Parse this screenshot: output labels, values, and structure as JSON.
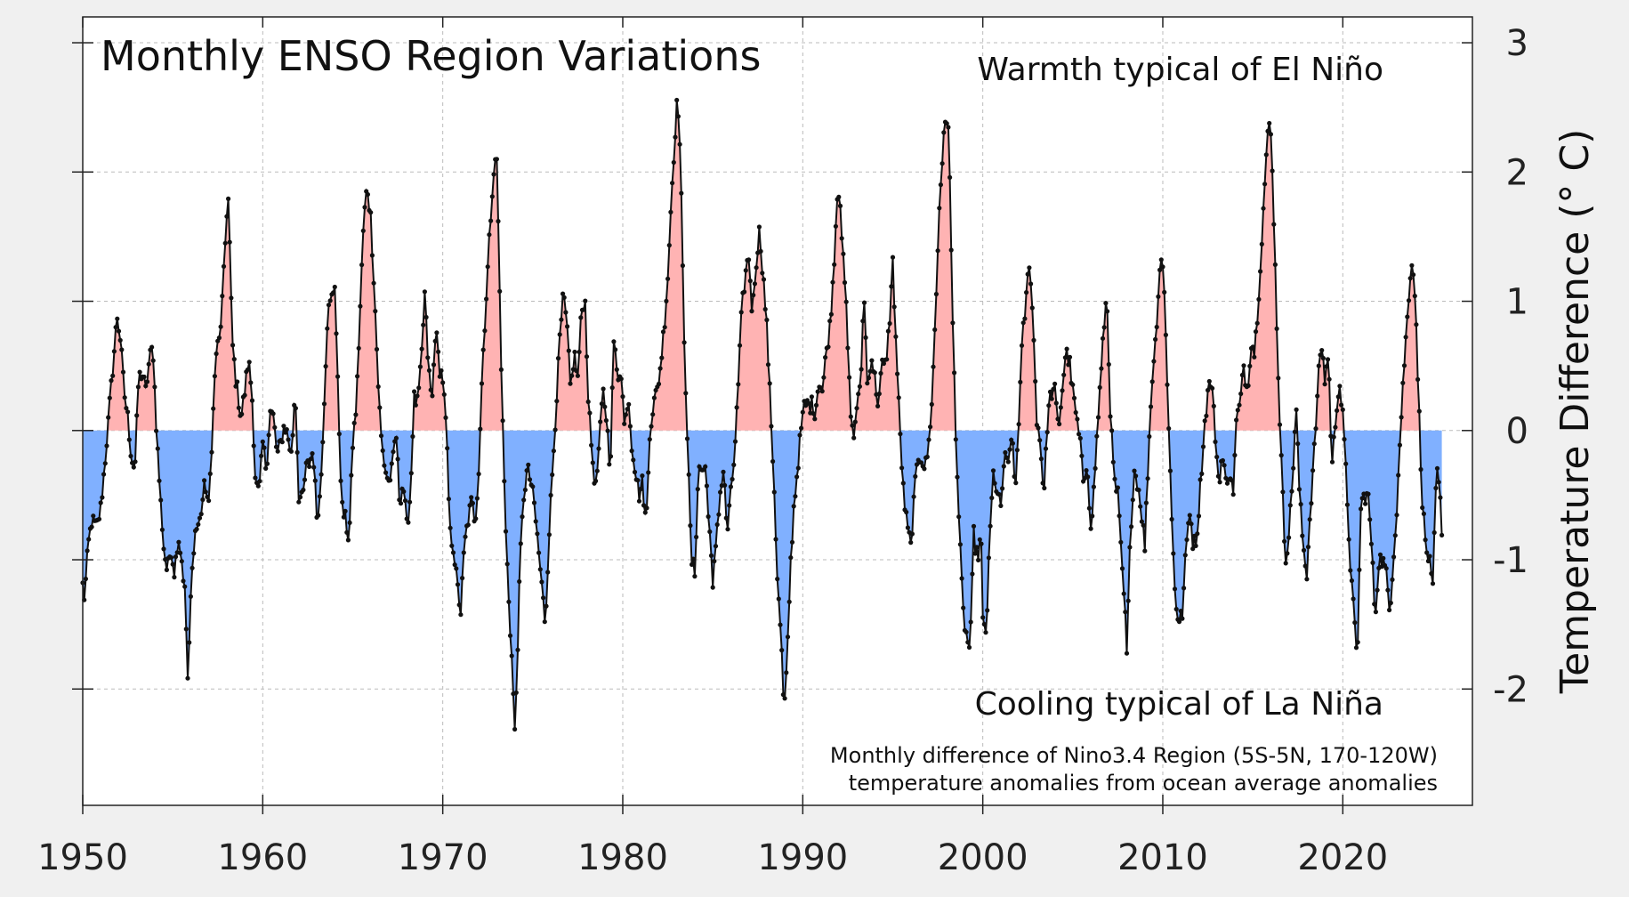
{
  "chart_data": {
    "type": "area",
    "title": "Monthly ENSO Region Variations",
    "ylabel": "Temperature Difference (° C)",
    "xlabel": "",
    "xlim": [
      1950,
      2027.2
    ],
    "ylim": [
      -2.9,
      3.2
    ],
    "x_ticks": [
      1950,
      1960,
      1970,
      1980,
      1990,
      2000,
      2010,
      2020
    ],
    "x_tick_labels": [
      "1950",
      "1960",
      "1970",
      "1980",
      "1990",
      "2000",
      "2010",
      "2020"
    ],
    "y_ticks": [
      -2,
      -1,
      0,
      1,
      2,
      3
    ],
    "y_tick_labels": [
      "-2",
      "-1",
      "0",
      "1",
      "2",
      "3"
    ],
    "grid": true,
    "annotations": {
      "warm": "Warmth typical of El Niño",
      "cool": "Cooling typical of La Niña",
      "note_line1": "Monthly difference of Nino3.4 Region (5S-5N, 170-120W)",
      "note_line2": "temperature anomalies from ocean average anomalies"
    },
    "colors": {
      "positive_fill": "#ffb3b3",
      "negative_fill": "#80b0ff",
      "line": "#111111",
      "warm_text": "#dd2222",
      "cool_text": "#3333cc",
      "background": "#f0f0f0",
      "plot_background": "#ffffff"
    },
    "series_keypoints": [
      [
        1950.0,
        -1.2
      ],
      [
        1950.1,
        -1.3
      ],
      [
        1950.3,
        -0.9
      ],
      [
        1950.5,
        -0.7
      ],
      [
        1950.8,
        -0.75
      ],
      [
        1951.0,
        -0.6
      ],
      [
        1951.2,
        -0.3
      ],
      [
        1951.5,
        0.2
      ],
      [
        1951.8,
        0.7
      ],
      [
        1951.9,
        0.9
      ],
      [
        1952.1,
        0.7
      ],
      [
        1952.3,
        0.3
      ],
      [
        1952.5,
        0.1
      ],
      [
        1952.7,
        -0.2
      ],
      [
        1952.9,
        -0.3
      ],
      [
        1953.1,
        0.4
      ],
      [
        1953.3,
        0.45
      ],
      [
        1953.5,
        0.3
      ],
      [
        1953.7,
        0.55
      ],
      [
        1953.9,
        0.65
      ],
      [
        1954.1,
        0.0
      ],
      [
        1954.3,
        -0.5
      ],
      [
        1954.5,
        -0.9
      ],
      [
        1954.7,
        -1.1
      ],
      [
        1954.9,
        -0.9
      ],
      [
        1955.1,
        -1.1
      ],
      [
        1955.3,
        -0.8
      ],
      [
        1955.5,
        -1.0
      ],
      [
        1955.7,
        -1.3
      ],
      [
        1955.85,
        -2.0
      ],
      [
        1956.0,
        -1.3
      ],
      [
        1956.2,
        -0.8
      ],
      [
        1956.5,
        -0.7
      ],
      [
        1956.8,
        -0.4
      ],
      [
        1957.0,
        -0.6
      ],
      [
        1957.2,
        0.0
      ],
      [
        1957.4,
        0.6
      ],
      [
        1957.6,
        0.7
      ],
      [
        1957.8,
        1.1
      ],
      [
        1958.0,
        1.7
      ],
      [
        1958.1,
        1.8
      ],
      [
        1958.3,
        0.7
      ],
      [
        1958.5,
        0.4
      ],
      [
        1958.8,
        0.1
      ],
      [
        1959.0,
        0.3
      ],
      [
        1959.2,
        0.55
      ],
      [
        1959.4,
        0.3
      ],
      [
        1959.6,
        -0.4
      ],
      [
        1959.8,
        -0.5
      ],
      [
        1960.0,
        -0.1
      ],
      [
        1960.2,
        -0.3
      ],
      [
        1960.4,
        0.15
      ],
      [
        1960.6,
        0.1
      ],
      [
        1960.8,
        -0.2
      ],
      [
        1961.0,
        -0.1
      ],
      [
        1961.2,
        0.05
      ],
      [
        1961.4,
        -0.05
      ],
      [
        1961.6,
        -0.2
      ],
      [
        1961.8,
        0.35
      ],
      [
        1962.0,
        -0.5
      ],
      [
        1962.2,
        -0.55
      ],
      [
        1962.4,
        -0.3
      ],
      [
        1962.6,
        -0.25
      ],
      [
        1962.8,
        -0.15
      ],
      [
        1963.0,
        -0.65
      ],
      [
        1963.2,
        -0.5
      ],
      [
        1963.4,
        0.2
      ],
      [
        1963.6,
        0.9
      ],
      [
        1963.8,
        1.0
      ],
      [
        1964.0,
        1.15
      ],
      [
        1964.2,
        0.2
      ],
      [
        1964.4,
        -0.6
      ],
      [
        1964.6,
        -0.7
      ],
      [
        1964.8,
        -0.85
      ],
      [
        1965.0,
        -0.1
      ],
      [
        1965.2,
        0.2
      ],
      [
        1965.4,
        0.9
      ],
      [
        1965.6,
        1.6
      ],
      [
        1965.8,
        1.9
      ],
      [
        1966.0,
        1.65
      ],
      [
        1966.2,
        1.1
      ],
      [
        1966.4,
        0.4
      ],
      [
        1966.6,
        -0.1
      ],
      [
        1966.8,
        -0.3
      ],
      [
        1967.0,
        -0.4
      ],
      [
        1967.2,
        -0.3
      ],
      [
        1967.4,
        0.0
      ],
      [
        1967.6,
        -0.55
      ],
      [
        1967.8,
        -0.4
      ],
      [
        1968.0,
        -0.75
      ],
      [
        1968.2,
        -0.5
      ],
      [
        1968.4,
        0.25
      ],
      [
        1968.6,
        0.2
      ],
      [
        1968.8,
        0.5
      ],
      [
        1969.0,
        1.05
      ],
      [
        1969.2,
        0.5
      ],
      [
        1969.4,
        0.2
      ],
      [
        1969.6,
        0.8
      ],
      [
        1969.8,
        0.5
      ],
      [
        1970.0,
        0.4
      ],
      [
        1970.2,
        0.0
      ],
      [
        1970.4,
        -0.8
      ],
      [
        1970.6,
        -0.9
      ],
      [
        1970.8,
        -1.2
      ],
      [
        1971.0,
        -1.4
      ],
      [
        1971.2,
        -0.9
      ],
      [
        1971.4,
        -0.7
      ],
      [
        1971.6,
        -0.55
      ],
      [
        1971.8,
        -0.7
      ],
      [
        1972.0,
        -0.3
      ],
      [
        1972.2,
        0.5
      ],
      [
        1972.4,
        1.0
      ],
      [
        1972.6,
        1.5
      ],
      [
        1972.8,
        2.0
      ],
      [
        1973.0,
        2.1
      ],
      [
        1973.1,
        1.5
      ],
      [
        1973.3,
        0.2
      ],
      [
        1973.5,
        -0.8
      ],
      [
        1973.7,
        -1.4
      ],
      [
        1973.85,
        -1.8
      ],
      [
        1974.0,
        -2.35
      ],
      [
        1974.1,
        -1.95
      ],
      [
        1974.3,
        -1.0
      ],
      [
        1974.5,
        -0.5
      ],
      [
        1974.7,
        -0.3
      ],
      [
        1974.9,
        -0.4
      ],
      [
        1975.1,
        -0.6
      ],
      [
        1975.3,
        -0.9
      ],
      [
        1975.5,
        -1.2
      ],
      [
        1975.7,
        -1.5
      ],
      [
        1975.9,
        -0.8
      ],
      [
        1976.1,
        -0.3
      ],
      [
        1976.3,
        0.2
      ],
      [
        1976.5,
        0.7
      ],
      [
        1976.7,
        1.05
      ],
      [
        1976.9,
        0.8
      ],
      [
        1977.1,
        0.3
      ],
      [
        1977.3,
        0.6
      ],
      [
        1977.5,
        0.4
      ],
      [
        1977.7,
        0.9
      ],
      [
        1977.9,
        1.05
      ],
      [
        1978.1,
        0.2
      ],
      [
        1978.3,
        -0.2
      ],
      [
        1978.5,
        -0.45
      ],
      [
        1978.7,
        -0.1
      ],
      [
        1978.9,
        0.3
      ],
      [
        1979.1,
        0.1
      ],
      [
        1979.3,
        -0.3
      ],
      [
        1979.5,
        0.7
      ],
      [
        1979.7,
        0.4
      ],
      [
        1979.9,
        0.5
      ],
      [
        1980.1,
        0.0
      ],
      [
        1980.3,
        0.3
      ],
      [
        1980.5,
        -0.1
      ],
      [
        1980.7,
        -0.3
      ],
      [
        1980.9,
        -0.5
      ],
      [
        1981.1,
        -0.4
      ],
      [
        1981.3,
        -0.75
      ],
      [
        1981.5,
        0.0
      ],
      [
        1981.7,
        0.2
      ],
      [
        1981.9,
        0.3
      ],
      [
        1982.1,
        0.5
      ],
      [
        1982.3,
        0.8
      ],
      [
        1982.5,
        1.2
      ],
      [
        1982.7,
        1.8
      ],
      [
        1982.9,
        2.3
      ],
      [
        1983.05,
        2.6
      ],
      [
        1983.2,
        2.1
      ],
      [
        1983.4,
        0.8
      ],
      [
        1983.6,
        -0.1
      ],
      [
        1983.8,
        -1.0
      ],
      [
        1984.0,
        -1.1
      ],
      [
        1984.2,
        -0.3
      ],
      [
        1984.4,
        -0.3
      ],
      [
        1984.6,
        -0.3
      ],
      [
        1984.8,
        -0.7
      ],
      [
        1985.0,
        -1.25
      ],
      [
        1985.2,
        -0.8
      ],
      [
        1985.4,
        -0.5
      ],
      [
        1985.6,
        -0.3
      ],
      [
        1985.8,
        -0.8
      ],
      [
        1986.0,
        -0.5
      ],
      [
        1986.2,
        -0.2
      ],
      [
        1986.4,
        0.3
      ],
      [
        1986.6,
        0.9
      ],
      [
        1986.8,
        1.2
      ],
      [
        1987.0,
        1.35
      ],
      [
        1987.2,
        0.9
      ],
      [
        1987.4,
        1.3
      ],
      [
        1987.6,
        1.55
      ],
      [
        1987.8,
        1.2
      ],
      [
        1988.0,
        0.8
      ],
      [
        1988.2,
        0.2
      ],
      [
        1988.4,
        -0.4
      ],
      [
        1988.6,
        -1.2
      ],
      [
        1988.8,
        -1.6
      ],
      [
        1988.95,
        -2.2
      ],
      [
        1989.1,
        -1.9
      ],
      [
        1989.3,
        -1.1
      ],
      [
        1989.5,
        -0.6
      ],
      [
        1989.7,
        -0.3
      ],
      [
        1989.9,
        0.0
      ],
      [
        1990.1,
        0.2
      ],
      [
        1990.3,
        0.2
      ],
      [
        1990.5,
        0.2
      ],
      [
        1990.7,
        0.15
      ],
      [
        1990.9,
        0.4
      ],
      [
        1991.1,
        0.3
      ],
      [
        1991.3,
        0.6
      ],
      [
        1991.5,
        0.8
      ],
      [
        1991.7,
        1.2
      ],
      [
        1991.9,
        1.8
      ],
      [
        1992.05,
        1.9
      ],
      [
        1992.2,
        1.4
      ],
      [
        1992.4,
        1.0
      ],
      [
        1992.6,
        0.3
      ],
      [
        1992.8,
        -0.1
      ],
      [
        1993.0,
        0.2
      ],
      [
        1993.2,
        0.3
      ],
      [
        1993.4,
        1.1
      ],
      [
        1993.6,
        0.3
      ],
      [
        1993.8,
        0.6
      ],
      [
        1994.0,
        0.4
      ],
      [
        1994.2,
        0.2
      ],
      [
        1994.4,
        0.5
      ],
      [
        1994.6,
        0.5
      ],
      [
        1994.8,
        0.8
      ],
      [
        1995.0,
        1.3
      ],
      [
        1995.2,
        0.6
      ],
      [
        1995.4,
        0.0
      ],
      [
        1995.6,
        -0.5
      ],
      [
        1995.8,
        -0.75
      ],
      [
        1996.0,
        -0.9
      ],
      [
        1996.2,
        -0.5
      ],
      [
        1996.4,
        -0.2
      ],
      [
        1996.6,
        -0.2
      ],
      [
        1996.8,
        -0.3
      ],
      [
        1997.0,
        -0.1
      ],
      [
        1997.2,
        0.3
      ],
      [
        1997.4,
        1.0
      ],
      [
        1997.6,
        1.8
      ],
      [
        1997.8,
        2.2
      ],
      [
        1997.95,
        2.4
      ],
      [
        1998.1,
        2.4
      ],
      [
        1998.3,
        1.0
      ],
      [
        1998.5,
        0.0
      ],
      [
        1998.7,
        -0.8
      ],
      [
        1998.9,
        -1.4
      ],
      [
        1999.1,
        -1.6
      ],
      [
        1999.3,
        -1.7
      ],
      [
        1999.5,
        -0.8
      ],
      [
        1999.7,
        -1.0
      ],
      [
        1999.9,
        -0.8
      ],
      [
        2000.0,
        -1.5
      ],
      [
        2000.2,
        -1.55
      ],
      [
        2000.4,
        -0.8
      ],
      [
        2000.6,
        -0.3
      ],
      [
        2000.8,
        -0.5
      ],
      [
        2001.0,
        -0.6
      ],
      [
        2001.2,
        -0.2
      ],
      [
        2001.4,
        -0.3
      ],
      [
        2001.6,
        0.0
      ],
      [
        2001.8,
        -0.5
      ],
      [
        2002.0,
        0.1
      ],
      [
        2002.2,
        0.7
      ],
      [
        2002.4,
        1.0
      ],
      [
        2002.6,
        1.35
      ],
      [
        2002.8,
        0.8
      ],
      [
        2003.0,
        0.1
      ],
      [
        2003.2,
        -0.1
      ],
      [
        2003.4,
        -0.5
      ],
      [
        2003.6,
        0.1
      ],
      [
        2003.8,
        0.3
      ],
      [
        2004.0,
        0.3
      ],
      [
        2004.2,
        0.0
      ],
      [
        2004.4,
        0.3
      ],
      [
        2004.6,
        0.6
      ],
      [
        2004.8,
        0.55
      ],
      [
        2005.0,
        0.3
      ],
      [
        2005.2,
        0.1
      ],
      [
        2005.4,
        -0.1
      ],
      [
        2005.6,
        -0.4
      ],
      [
        2005.8,
        -0.2
      ],
      [
        2006.0,
        -0.8
      ],
      [
        2006.2,
        -0.4
      ],
      [
        2006.4,
        0.1
      ],
      [
        2006.6,
        0.5
      ],
      [
        2006.8,
        0.95
      ],
      [
        2006.9,
        1.0
      ],
      [
        2007.1,
        0.1
      ],
      [
        2007.3,
        -0.4
      ],
      [
        2007.5,
        -0.5
      ],
      [
        2007.7,
        -1.0
      ],
      [
        2007.9,
        -1.4
      ],
      [
        2008.0,
        -1.75
      ],
      [
        2008.2,
        -0.8
      ],
      [
        2008.4,
        -0.3
      ],
      [
        2008.6,
        -0.4
      ],
      [
        2008.8,
        -0.6
      ],
      [
        2009.0,
        -0.9
      ],
      [
        2009.2,
        -0.2
      ],
      [
        2009.4,
        0.4
      ],
      [
        2009.6,
        0.7
      ],
      [
        2009.8,
        1.2
      ],
      [
        2009.95,
        1.4
      ],
      [
        2010.1,
        1.0
      ],
      [
        2010.3,
        0.2
      ],
      [
        2010.5,
        -0.7
      ],
      [
        2010.7,
        -1.3
      ],
      [
        2010.9,
        -1.5
      ],
      [
        2011.1,
        -1.4
      ],
      [
        2011.3,
        -0.9
      ],
      [
        2011.5,
        -0.6
      ],
      [
        2011.7,
        -0.9
      ],
      [
        2011.9,
        -0.8
      ],
      [
        2012.1,
        -0.4
      ],
      [
        2012.3,
        0.0
      ],
      [
        2012.5,
        0.3
      ],
      [
        2012.7,
        0.4
      ],
      [
        2012.9,
        0.0
      ],
      [
        2013.1,
        -0.4
      ],
      [
        2013.3,
        -0.2
      ],
      [
        2013.5,
        -0.4
      ],
      [
        2013.7,
        -0.3
      ],
      [
        2013.9,
        -0.5
      ],
      [
        2014.1,
        0.1
      ],
      [
        2014.3,
        0.2
      ],
      [
        2014.5,
        0.5
      ],
      [
        2014.7,
        0.3
      ],
      [
        2014.9,
        0.7
      ],
      [
        2015.1,
        0.6
      ],
      [
        2015.3,
        1.0
      ],
      [
        2015.5,
        1.5
      ],
      [
        2015.7,
        2.0
      ],
      [
        2015.9,
        2.4
      ],
      [
        2016.05,
        2.2
      ],
      [
        2016.2,
        1.5
      ],
      [
        2016.4,
        0.5
      ],
      [
        2016.6,
        -0.3
      ],
      [
        2016.8,
        -1.0
      ],
      [
        2017.0,
        -0.8
      ],
      [
        2017.2,
        -0.4
      ],
      [
        2017.4,
        0.2
      ],
      [
        2017.6,
        -0.5
      ],
      [
        2017.8,
        -0.9
      ],
      [
        2018.0,
        -1.1
      ],
      [
        2018.2,
        -0.6
      ],
      [
        2018.4,
        -0.2
      ],
      [
        2018.6,
        0.3
      ],
      [
        2018.8,
        0.7
      ],
      [
        2019.0,
        0.4
      ],
      [
        2019.2,
        0.6
      ],
      [
        2019.4,
        -0.3
      ],
      [
        2019.6,
        0.1
      ],
      [
        2019.8,
        0.4
      ],
      [
        2020.0,
        0.1
      ],
      [
        2020.2,
        -0.4
      ],
      [
        2020.4,
        -1.0
      ],
      [
        2020.6,
        -1.4
      ],
      [
        2020.8,
        -1.8
      ],
      [
        2021.0,
        -0.6
      ],
      [
        2021.2,
        -0.5
      ],
      [
        2021.4,
        -0.5
      ],
      [
        2021.6,
        -0.9
      ],
      [
        2021.8,
        -1.45
      ],
      [
        2022.0,
        -1.0
      ],
      [
        2022.2,
        -1.0
      ],
      [
        2022.4,
        -1.1
      ],
      [
        2022.6,
        -1.4
      ],
      [
        2022.8,
        -1.0
      ],
      [
        2023.0,
        -0.6
      ],
      [
        2023.2,
        0.0
      ],
      [
        2023.4,
        0.5
      ],
      [
        2023.6,
        0.9
      ],
      [
        2023.8,
        1.35
      ],
      [
        2024.0,
        1.1
      ],
      [
        2024.2,
        0.3
      ],
      [
        2024.4,
        -0.5
      ],
      [
        2024.6,
        -0.9
      ],
      [
        2024.8,
        -1.0
      ],
      [
        2025.0,
        -1.25
      ],
      [
        2025.2,
        -0.3
      ],
      [
        2025.4,
        -0.5
      ],
      [
        2025.5,
        -0.85
      ]
    ]
  }
}
